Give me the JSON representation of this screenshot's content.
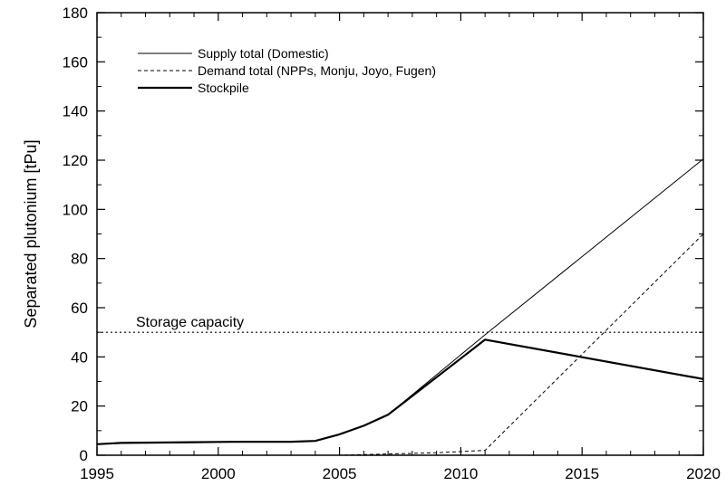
{
  "chart_data": {
    "type": "line",
    "title": "",
    "xlabel": "",
    "ylabel": "Separated plutonium [tPu]",
    "xlim": [
      1995,
      2020
    ],
    "ylim": [
      0,
      180
    ],
    "xticks": [
      1995,
      2000,
      2005,
      2010,
      2015,
      2020
    ],
    "yticks": [
      0,
      20,
      40,
      60,
      80,
      100,
      120,
      140,
      160,
      180
    ],
    "grid": false,
    "legend_position": "top-left",
    "series": [
      {
        "name": "Supply total (Domestic)",
        "style": "solid-thin",
        "x": [
          1995,
          1996,
          1997,
          1998,
          1999,
          2000,
          2001,
          2002,
          2003,
          2004,
          2005,
          2006,
          2007,
          2011,
          2020
        ],
        "y": [
          4.5,
          5,
          5.1,
          5.2,
          5.3,
          5.4,
          5.5,
          5.5,
          5.5,
          5.8,
          8.5,
          12,
          16.5,
          49,
          120.5
        ]
      },
      {
        "name": "Demand total (NPPs, Monju, Joyo, Fugen)",
        "style": "dashed",
        "x": [
          1995,
          2005,
          2007,
          2009,
          2011,
          2020
        ],
        "y": [
          0,
          0,
          0.5,
          1,
          2,
          90
        ]
      },
      {
        "name": "Stockpile",
        "style": "solid-thick",
        "x": [
          1995,
          1996,
          1997,
          1998,
          1999,
          2000,
          2001,
          2002,
          2003,
          2004,
          2005,
          2006,
          2007,
          2011,
          2020
        ],
        "y": [
          4.5,
          5,
          5.1,
          5.2,
          5.3,
          5.4,
          5.5,
          5.5,
          5.5,
          5.8,
          8.5,
          12,
          16.5,
          47,
          31
        ]
      }
    ],
    "annotations": [
      {
        "text": "Storage capacity",
        "y": 50,
        "style": "dotted"
      }
    ],
    "colors": {
      "line": "#000000",
      "background": "#ffffff"
    }
  }
}
